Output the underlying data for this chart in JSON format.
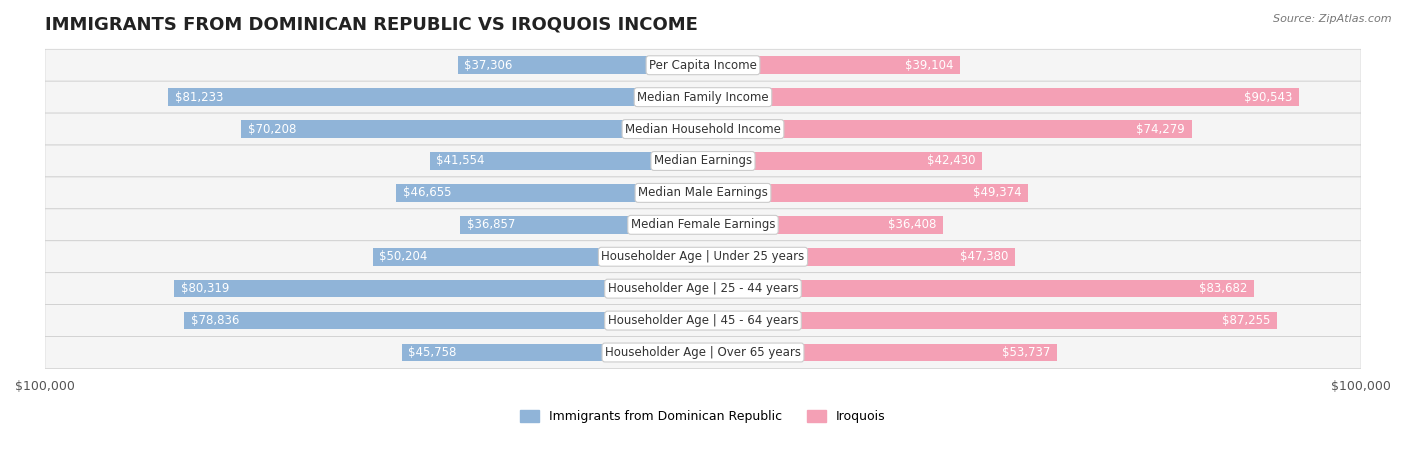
{
  "title": "IMMIGRANTS FROM DOMINICAN REPUBLIC VS IROQUOIS INCOME",
  "source": "Source: ZipAtlas.com",
  "categories": [
    "Per Capita Income",
    "Median Family Income",
    "Median Household Income",
    "Median Earnings",
    "Median Male Earnings",
    "Median Female Earnings",
    "Householder Age | Under 25 years",
    "Householder Age | 25 - 44 years",
    "Householder Age | 45 - 64 years",
    "Householder Age | Over 65 years"
  ],
  "left_values": [
    37306,
    81233,
    70208,
    41554,
    46655,
    36857,
    50204,
    80319,
    78836,
    45758
  ],
  "right_values": [
    39104,
    90543,
    74279,
    42430,
    49374,
    36408,
    47380,
    83682,
    87255,
    53737
  ],
  "left_labels": [
    "$37,306",
    "$81,233",
    "$70,208",
    "$41,554",
    "$46,655",
    "$36,857",
    "$50,204",
    "$80,319",
    "$78,836",
    "$45,758"
  ],
  "right_labels": [
    "$39,104",
    "$90,543",
    "$74,279",
    "$42,430",
    "$49,374",
    "$36,408",
    "$47,380",
    "$83,682",
    "$87,255",
    "$53,737"
  ],
  "max_val": 100000,
  "left_color": "#90b4d8",
  "right_color": "#f4a0b5",
  "left_color_dark": "#6897c4",
  "right_color_dark": "#e87096",
  "legend_left": "Immigrants from Dominican Republic",
  "legend_right": "Iroquois",
  "row_bg": "#f0f0f0",
  "bar_height": 0.55,
  "title_fontsize": 13,
  "label_fontsize": 8.5
}
